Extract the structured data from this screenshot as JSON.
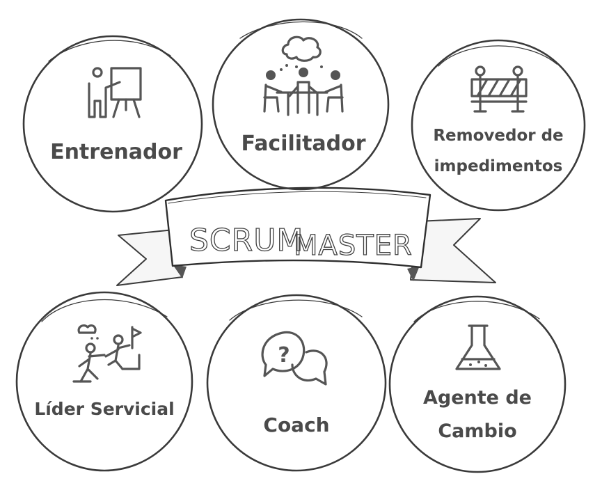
{
  "banner": {
    "title_part1": "SCRUM",
    "title_part2": "MASTER"
  },
  "roles": [
    {
      "id": "entrenador",
      "lines": [
        "Entrenador"
      ],
      "icon": "trainer-presentation-icon"
    },
    {
      "id": "facilitador",
      "lines": [
        "Facilitador"
      ],
      "icon": "meeting-table-icon"
    },
    {
      "id": "removedor",
      "lines": [
        "Removedor de",
        "impedimentos"
      ],
      "icon": "barrier-icon"
    },
    {
      "id": "lider",
      "lines": [
        "Líder Servicial"
      ],
      "icon": "helping-climb-icon"
    },
    {
      "id": "coach",
      "lines": [
        "Coach"
      ],
      "icon": "question-chat-icon"
    },
    {
      "id": "agente",
      "lines": [
        "Agente de",
        "Cambio"
      ],
      "icon": "flask-icon"
    }
  ]
}
